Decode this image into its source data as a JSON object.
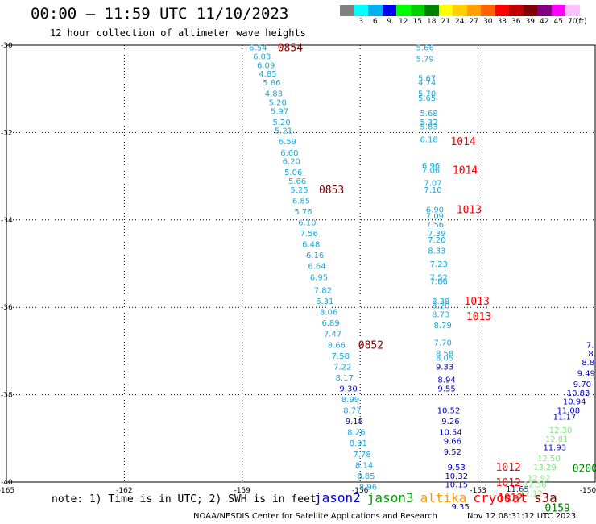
{
  "title": "00:00 – 11:59 UTC 11/10/2023",
  "subtitle": "12 hour collection of altimeter wave heights",
  "legend": {
    "unit": "(ft)",
    "bins": [
      {
        "label": "",
        "color": "#808080"
      },
      {
        "label": "3",
        "color": "#00ffff"
      },
      {
        "label": "6",
        "color": "#00b0f0"
      },
      {
        "label": "9",
        "color": "#0000ff"
      },
      {
        "label": "12",
        "color": "#00ff00"
      },
      {
        "label": "15",
        "color": "#00d000"
      },
      {
        "label": "18",
        "color": "#008000"
      },
      {
        "label": "21",
        "color": "#ffff00"
      },
      {
        "label": "24",
        "color": "#ffd000"
      },
      {
        "label": "27",
        "color": "#ffa000"
      },
      {
        "label": "30",
        "color": "#ff6000"
      },
      {
        "label": "33",
        "color": "#ff0000"
      },
      {
        "label": "36",
        "color": "#c00000"
      },
      {
        "label": "39",
        "color": "#800000"
      },
      {
        "label": "42",
        "color": "#800080"
      },
      {
        "label": "45",
        "color": "#ff00ff"
      },
      {
        "label": "70",
        "color": "#ffc0ff"
      }
    ]
  },
  "axes": {
    "lat_ticks": [
      "-30",
      "-32",
      "-34",
      "-36",
      "-38",
      "-40"
    ],
    "lon_ticks": [
      "-165",
      "-162",
      "-159",
      "-156",
      "-153",
      "-150"
    ]
  },
  "colors": {
    "cyan": "#1aa8d8",
    "blue": "#0000c8",
    "light_green": "#7ee87e",
    "dark_green": "#008000",
    "maroon": "#800000",
    "red": "#ff0000"
  },
  "tracks": [
    {
      "color": "cyan",
      "points": [
        {
          "lat": -30.05,
          "lon": -158.6,
          "v": "6.54"
        },
        {
          "lat": -30.25,
          "lon": -158.5,
          "v": "6.03"
        },
        {
          "lat": -30.45,
          "lon": -158.4,
          "v": "6.09"
        },
        {
          "lat": -30.65,
          "lon": -158.35,
          "v": "4.85"
        },
        {
          "lat": -30.85,
          "lon": -158.25,
          "v": "5.86"
        },
        {
          "lat": -31.1,
          "lon": -158.2,
          "v": "4.83"
        },
        {
          "lat": -31.3,
          "lon": -158.1,
          "v": "5.20"
        },
        {
          "lat": -31.5,
          "lon": -158.05,
          "v": "5.97"
        },
        {
          "lat": -31.75,
          "lon": -158.0,
          "v": "5.20"
        },
        {
          "lat": -31.95,
          "lon": -157.95,
          "v": "5.21"
        },
        {
          "lat": -32.2,
          "lon": -157.85,
          "v": "6.59"
        },
        {
          "lat": -32.45,
          "lon": -157.8,
          "v": "6.60"
        },
        {
          "lat": -32.65,
          "lon": -157.75,
          "v": "6.20"
        },
        {
          "lat": -32.9,
          "lon": -157.7,
          "v": "5.06"
        },
        {
          "lat": -33.1,
          "lon": -157.6,
          "v": "5.66"
        },
        {
          "lat": -33.3,
          "lon": -157.55,
          "v": "5.25"
        },
        {
          "lat": -33.55,
          "lon": -157.5,
          "v": "6.85"
        },
        {
          "lat": -33.8,
          "lon": -157.45,
          "v": "5.76"
        },
        {
          "lat": -34.05,
          "lon": -157.35,
          "v": "6.10"
        },
        {
          "lat": -34.3,
          "lon": -157.3,
          "v": "7.56"
        },
        {
          "lat": -34.55,
          "lon": -157.25,
          "v": "6.48"
        },
        {
          "lat": -34.8,
          "lon": -157.15,
          "v": "6.16"
        },
        {
          "lat": -35.05,
          "lon": -157.1,
          "v": "6.64"
        },
        {
          "lat": -35.3,
          "lon": -157.05,
          "v": "6.95"
        },
        {
          "lat": -35.6,
          "lon": -156.95,
          "v": "7.82"
        },
        {
          "lat": -35.85,
          "lon": -156.9,
          "v": "6.31"
        },
        {
          "lat": -36.1,
          "lon": -156.8,
          "v": "8.06"
        },
        {
          "lat": -36.35,
          "lon": -156.75,
          "v": "6.89"
        },
        {
          "lat": -36.6,
          "lon": -156.7,
          "v": "7.47"
        },
        {
          "lat": -36.85,
          "lon": -156.6,
          "v": "8.66"
        },
        {
          "lat": -37.1,
          "lon": -156.5,
          "v": "7.58"
        },
        {
          "lat": -37.35,
          "lon": -156.45,
          "v": "7.22"
        },
        {
          "lat": -37.6,
          "lon": -156.4,
          "v": "8.17"
        },
        {
          "lat": -38.1,
          "lon": -156.25,
          "v": "8.99"
        },
        {
          "lat": -38.35,
          "lon": -156.2,
          "v": "8.77"
        },
        {
          "lat": -38.85,
          "lon": -156.1,
          "v": "8.26"
        },
        {
          "lat": -39.1,
          "lon": -156.05,
          "v": "8.91"
        },
        {
          "lat": -39.35,
          "lon": -155.95,
          "v": "7.78"
        },
        {
          "lat": -39.6,
          "lon": -155.9,
          "v": "8.14"
        },
        {
          "lat": -39.85,
          "lon": -155.85,
          "v": "8.85"
        },
        {
          "lat": -40.1,
          "lon": -155.8,
          "v": "8.96"
        }
      ]
    },
    {
      "color": "blue",
      "points": [
        {
          "lat": -37.85,
          "lon": -156.3,
          "v": "9.30"
        },
        {
          "lat": -38.6,
          "lon": -156.15,
          "v": "9.18"
        }
      ]
    },
    {
      "color": "cyan",
      "points": [
        {
          "lat": -30.05,
          "lon": -154.35,
          "v": "5.66"
        },
        {
          "lat": -30.3,
          "lon": -154.35,
          "v": "5.79"
        },
        {
          "lat": -30.75,
          "lon": -154.3,
          "v": "5.67"
        },
        {
          "lat": -30.85,
          "lon": -154.3,
          "v": "4.74"
        },
        {
          "lat": -31.1,
          "lon": -154.3,
          "v": "5.70"
        },
        {
          "lat": -31.2,
          "lon": -154.3,
          "v": "5.65"
        },
        {
          "lat": -31.55,
          "lon": -154.25,
          "v": "5.68"
        },
        {
          "lat": -31.75,
          "lon": -154.25,
          "v": "5.32"
        },
        {
          "lat": -31.85,
          "lon": -154.25,
          "v": "5.83"
        },
        {
          "lat": -32.15,
          "lon": -154.25,
          "v": "6.18"
        },
        {
          "lat": -32.75,
          "lon": -154.2,
          "v": "6.96"
        },
        {
          "lat": -32.85,
          "lon": -154.2,
          "v": "7.06"
        },
        {
          "lat": -33.15,
          "lon": -154.15,
          "v": "7.07"
        },
        {
          "lat": -33.3,
          "lon": -154.15,
          "v": "7.10"
        },
        {
          "lat": -33.75,
          "lon": -154.1,
          "v": "6.90"
        },
        {
          "lat": -33.9,
          "lon": -154.1,
          "v": "7.09"
        },
        {
          "lat": -34.1,
          "lon": -154.1,
          "v": "7.56"
        },
        {
          "lat": -34.3,
          "lon": -154.05,
          "v": "7.39"
        },
        {
          "lat": -34.45,
          "lon": -154.05,
          "v": "7.20"
        },
        {
          "lat": -34.7,
          "lon": -154.05,
          "v": "8.33"
        },
        {
          "lat": -35.0,
          "lon": -154.0,
          "v": "7.23"
        },
        {
          "lat": -35.3,
          "lon": -154.0,
          "v": "7.52"
        },
        {
          "lat": -35.4,
          "lon": -154.0,
          "v": "7.86"
        },
        {
          "lat": -35.85,
          "lon": -153.95,
          "v": "8.38"
        },
        {
          "lat": -35.95,
          "lon": -153.95,
          "v": "8.20"
        },
        {
          "lat": -36.15,
          "lon": -153.95,
          "v": "8.73"
        },
        {
          "lat": -36.4,
          "lon": -153.9,
          "v": "8.79"
        },
        {
          "lat": -36.8,
          "lon": -153.9,
          "v": "7.70"
        },
        {
          "lat": -37.05,
          "lon": -153.85,
          "v": "8.58"
        },
        {
          "lat": -37.15,
          "lon": -153.85,
          "v": "8.05"
        }
      ]
    },
    {
      "color": "blue",
      "points": [
        {
          "lat": -37.35,
          "lon": -153.85,
          "v": "9.33"
        },
        {
          "lat": -37.65,
          "lon": -153.8,
          "v": "8.94"
        },
        {
          "lat": -37.85,
          "lon": -153.8,
          "v": "9.55"
        },
        {
          "lat": -38.35,
          "lon": -153.75,
          "v": "10.52"
        },
        {
          "lat": -38.6,
          "lon": -153.7,
          "v": "9.26"
        },
        {
          "lat": -38.85,
          "lon": -153.7,
          "v": "10.54"
        },
        {
          "lat": -39.05,
          "lon": -153.65,
          "v": "9.66"
        },
        {
          "lat": -39.3,
          "lon": -153.65,
          "v": "9.52"
        },
        {
          "lat": -39.65,
          "lon": -153.55,
          "v": "9.53"
        },
        {
          "lat": -39.85,
          "lon": -153.55,
          "v": "10.32"
        },
        {
          "lat": -40.05,
          "lon": -153.55,
          "v": "10.15"
        },
        {
          "lat": -40.55,
          "lon": -153.45,
          "v": "9.35"
        }
      ]
    },
    {
      "color": "blue",
      "points": [
        {
          "lat": -36.85,
          "lon": -150.15,
          "v": "7."
        },
        {
          "lat": -37.05,
          "lon": -150.1,
          "v": "8."
        },
        {
          "lat": -37.25,
          "lon": -150.2,
          "v": "8.8"
        },
        {
          "lat": -37.5,
          "lon": -150.25,
          "v": "9.49"
        },
        {
          "lat": -37.75,
          "lon": -150.35,
          "v": "9.70"
        },
        {
          "lat": -37.95,
          "lon": -150.45,
          "v": "10.83"
        },
        {
          "lat": -38.15,
          "lon": -150.55,
          "v": "10.94"
        },
        {
          "lat": -38.35,
          "lon": -150.7,
          "v": "11.08"
        },
        {
          "lat": -38.5,
          "lon": -150.8,
          "v": "11.17"
        },
        {
          "lat": -39.2,
          "lon": -151.05,
          "v": "11.93"
        },
        {
          "lat": -40.15,
          "lon": -152.0,
          "v": "11.65"
        }
      ]
    },
    {
      "color": "light_green",
      "points": [
        {
          "lat": -38.8,
          "lon": -150.9,
          "v": "12.30"
        },
        {
          "lat": -39.0,
          "lon": -151.0,
          "v": "12.81"
        },
        {
          "lat": -39.45,
          "lon": -151.2,
          "v": "12.50"
        },
        {
          "lat": -39.65,
          "lon": -151.3,
          "v": "13.29"
        },
        {
          "lat": -39.9,
          "lon": -151.45,
          "v": "12.92"
        },
        {
          "lat": -40.05,
          "lon": -151.55,
          "v": "12.58"
        },
        {
          "lat": -40.25,
          "lon": -151.65,
          "v": "12.12"
        }
      ]
    },
    {
      "color": "dark_green",
      "points": [
        {
          "lat": -39.7,
          "lon": -150.6,
          "v": "0200"
        },
        {
          "lat": -40.6,
          "lon": -151.3,
          "v": "0159"
        }
      ]
    }
  ],
  "time_labels": [
    {
      "lat": -30.05,
      "lon": -158.1,
      "v": "0854",
      "color": "maroon"
    },
    {
      "lat": -33.3,
      "lon": -157.05,
      "v": "0853",
      "color": "maroon"
    },
    {
      "lat": -36.85,
      "lon": -156.05,
      "v": "0852",
      "color": "maroon"
    },
    {
      "lat": -32.2,
      "lon": -153.7,
      "v": "1014",
      "color": "red"
    },
    {
      "lat": -32.85,
      "lon": -153.65,
      "v": "1014",
      "color": "red"
    },
    {
      "lat": -33.75,
      "lon": -153.55,
      "v": "1013",
      "color": "red"
    },
    {
      "lat": -35.85,
      "lon": -153.35,
      "v": "1013",
      "color": "red"
    },
    {
      "lat": -36.2,
      "lon": -153.3,
      "v": "1013",
      "color": "red"
    },
    {
      "lat": -39.65,
      "lon": -152.55,
      "v": "1012",
      "color": "red"
    },
    {
      "lat": -40.0,
      "lon": -152.55,
      "v": "1012",
      "color": "red"
    },
    {
      "lat": -40.35,
      "lon": -152.5,
      "v": "1012",
      "color": "red"
    }
  ],
  "footer": {
    "note": "note: 1) Time is in UTC; 2) SWH is in feet",
    "satellites": [
      {
        "name": "jason2",
        "color": "#0000c8"
      },
      {
        "name": "jason3",
        "color": "#00a000"
      },
      {
        "name": "altika",
        "color": "#ff9900"
      },
      {
        "name": "cryosat",
        "color": "#ff0000"
      },
      {
        "name": "s3a",
        "color": "#800000"
      }
    ],
    "credit": "NOAA/NESDIS Center for Satellite Applications and Research",
    "stamp": "Nov 12 08:31:12 UTC 2023"
  }
}
